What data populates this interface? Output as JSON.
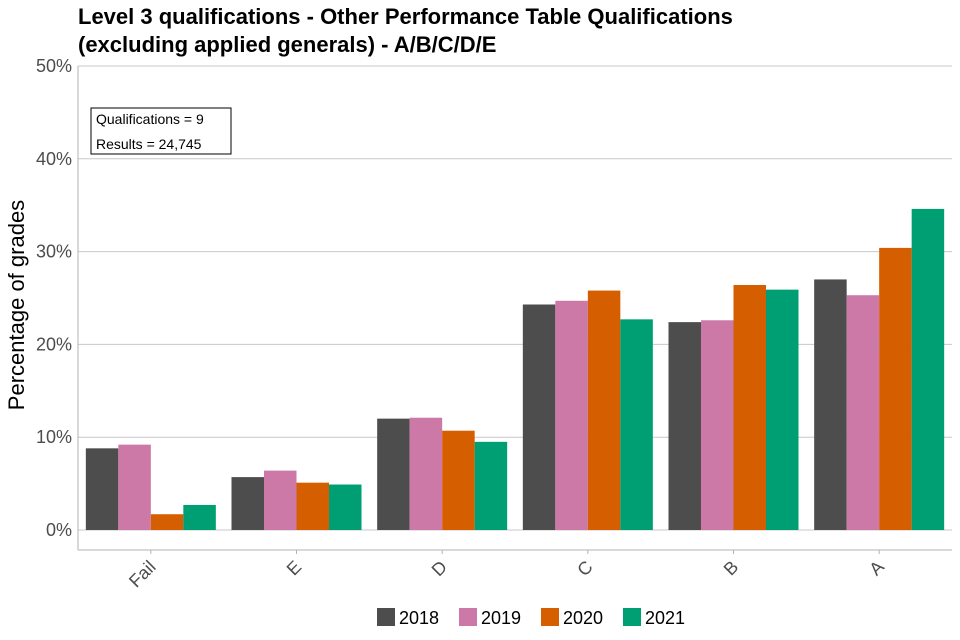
{
  "chart_data": {
    "type": "bar",
    "title_lines": [
      "Level 3 qualifications  - Other Performance Table Qualifications",
      "(excluding applied generals) - A/B/C/D/E"
    ],
    "xlabel": "",
    "ylabel": "Percentage of grades",
    "ylim": [
      0,
      50
    ],
    "yticks": [
      0,
      10,
      20,
      30,
      40,
      50
    ],
    "ytick_labels": [
      "0%",
      "10%",
      "20%",
      "30%",
      "40%",
      "50%"
    ],
    "categories": [
      "Fail",
      "E",
      "D",
      "C",
      "B",
      "A"
    ],
    "series": [
      {
        "name": "2018",
        "color": "#4d4d4d",
        "values": [
          8.8,
          5.7,
          12.0,
          24.3,
          22.4,
          27.0
        ]
      },
      {
        "name": "2019",
        "color": "#cc79a7",
        "values": [
          9.2,
          6.4,
          12.1,
          24.7,
          22.6,
          25.3
        ]
      },
      {
        "name": "2020",
        "color": "#d55e00",
        "values": [
          1.7,
          5.1,
          10.7,
          25.8,
          26.4,
          30.4
        ]
      },
      {
        "name": "2021",
        "color": "#009e73",
        "values": [
          2.7,
          4.9,
          9.5,
          22.7,
          25.9,
          34.6
        ]
      }
    ],
    "annotation": [
      "Qualifications = 9",
      "Results = 24,745"
    ],
    "legend_position": "bottom",
    "grid": true
  }
}
